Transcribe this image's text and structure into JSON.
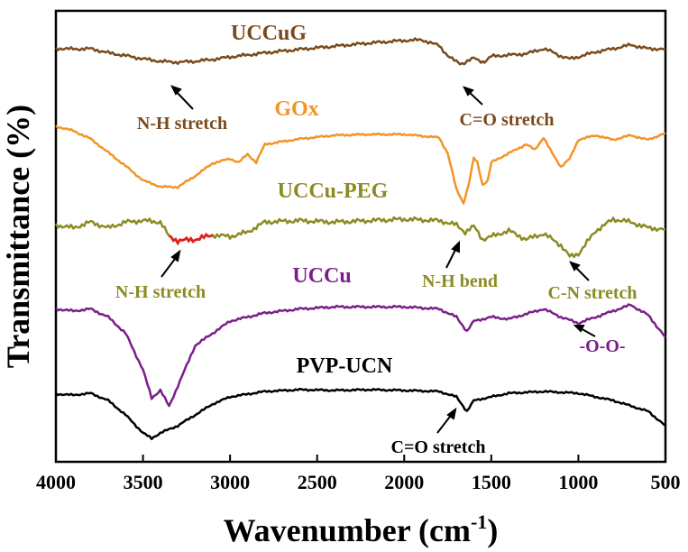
{
  "chart_data": {
    "type": "line",
    "title": "",
    "xlabel": "Wavenumber (cm",
    "xlabel_superscript": "-1",
    "xlabel_suffix": ")",
    "ylabel": "Transmittance (%)",
    "xlim": [
      4000,
      500
    ],
    "x_reversed": true,
    "yaxis_ticks_visible": false,
    "grid": false,
    "x_ticks": [
      4000,
      3500,
      3000,
      2500,
      2000,
      1500,
      1000,
      500
    ],
    "x_tick_labels": [
      "4000",
      "3500",
      "3000",
      "2500",
      "2000",
      "1500",
      "1000",
      "500"
    ],
    "series": [
      {
        "name": "UCCuG",
        "color": "#7a4a1c",
        "label_color": "#7a4a1c",
        "values": [
          [
            4000,
            0.39
          ],
          [
            3900,
            0.41
          ],
          [
            3800,
            0.4
          ],
          [
            3700,
            0.53
          ],
          [
            3600,
            0.62
          ],
          [
            3500,
            0.72
          ],
          [
            3400,
            0.8
          ],
          [
            3300,
            0.83
          ],
          [
            3200,
            0.8
          ],
          [
            3100,
            0.74
          ],
          [
            3000,
            0.66
          ],
          [
            2900,
            0.6
          ],
          [
            2800,
            0.53
          ],
          [
            2600,
            0.42
          ],
          [
            2400,
            0.32
          ],
          [
            2200,
            0.22
          ],
          [
            2000,
            0.14
          ],
          [
            1900,
            0.12
          ],
          [
            1800,
            0.3
          ],
          [
            1750,
            0.62
          ],
          [
            1700,
            0.82
          ],
          [
            1670,
            0.88
          ],
          [
            1650,
            0.82
          ],
          [
            1600,
            0.7
          ],
          [
            1560,
            0.8
          ],
          [
            1540,
            0.82
          ],
          [
            1500,
            0.64
          ],
          [
            1400,
            0.6
          ],
          [
            1300,
            0.56
          ],
          [
            1200,
            0.4
          ],
          [
            1150,
            0.5
          ],
          [
            1100,
            0.64
          ],
          [
            1050,
            0.72
          ],
          [
            1000,
            0.66
          ],
          [
            900,
            0.5
          ],
          [
            800,
            0.4
          ],
          [
            700,
            0.28
          ],
          [
            600,
            0.4
          ],
          [
            500,
            0.41
          ]
        ]
      },
      {
        "name": "GOx",
        "color": "#f39428",
        "label_color": "#f39428",
        "values": [
          [
            4000,
            0.0
          ],
          [
            3900,
            0.1
          ],
          [
            3800,
            0.28
          ],
          [
            3700,
            0.58
          ],
          [
            3600,
            0.88
          ],
          [
            3500,
            1.2
          ],
          [
            3400,
            1.34
          ],
          [
            3300,
            1.35
          ],
          [
            3200,
            1.1
          ],
          [
            3100,
            0.82
          ],
          [
            3000,
            0.72
          ],
          [
            2950,
            0.8
          ],
          [
            2900,
            0.62
          ],
          [
            2850,
            0.8
          ],
          [
            2800,
            0.4
          ],
          [
            2600,
            0.28
          ],
          [
            2400,
            0.2
          ],
          [
            2200,
            0.18
          ],
          [
            2000,
            0.18
          ],
          [
            1800,
            0.25
          ],
          [
            1750,
            0.6
          ],
          [
            1700,
            1.4
          ],
          [
            1660,
            1.7
          ],
          [
            1630,
            1.3
          ],
          [
            1600,
            0.7
          ],
          [
            1580,
            0.8
          ],
          [
            1550,
            1.3
          ],
          [
            1520,
            1.2
          ],
          [
            1500,
            0.8
          ],
          [
            1400,
            0.6
          ],
          [
            1300,
            0.4
          ],
          [
            1250,
            0.52
          ],
          [
            1200,
            0.25
          ],
          [
            1150,
            0.6
          ],
          [
            1100,
            0.9
          ],
          [
            1050,
            0.72
          ],
          [
            1000,
            0.3
          ],
          [
            900,
            0.2
          ],
          [
            800,
            0.3
          ],
          [
            700,
            0.2
          ],
          [
            600,
            0.3
          ],
          [
            500,
            0.15
          ]
        ]
      },
      {
        "name": "UCCu-PEG",
        "color": "#8b8b24",
        "label_color": "#8b8b24",
        "values": [
          [
            4000,
            0.2
          ],
          [
            3900,
            0.3
          ],
          [
            3800,
            0.1
          ],
          [
            3700,
            0.3
          ],
          [
            3600,
            0.1
          ],
          [
            3500,
            0.05
          ],
          [
            3400,
            0.1
          ],
          [
            3350,
            0.6
          ],
          [
            3300,
            0.75
          ],
          [
            3200,
            0.7
          ],
          [
            3100,
            0.55
          ],
          [
            3000,
            0.6
          ],
          [
            2900,
            0.45
          ],
          [
            2800,
            0.1
          ],
          [
            2600,
            0.05
          ],
          [
            2400,
            0.1
          ],
          [
            2200,
            0.05
          ],
          [
            2000,
            0.0
          ],
          [
            1800,
            0.05
          ],
          [
            1700,
            0.2
          ],
          [
            1650,
            0.45
          ],
          [
            1600,
            0.25
          ],
          [
            1550,
            0.7
          ],
          [
            1500,
            0.6
          ],
          [
            1400,
            0.4
          ],
          [
            1300,
            0.7
          ],
          [
            1200,
            0.5
          ],
          [
            1100,
            0.9
          ],
          [
            1050,
            1.3
          ],
          [
            1000,
            1.2
          ],
          [
            900,
            0.4
          ],
          [
            800,
            0.0
          ],
          [
            700,
            0.1
          ],
          [
            600,
            0.3
          ],
          [
            500,
            0.35
          ]
        ]
      },
      {
        "name": "UCCu",
        "color": "#7a1f8a",
        "label_color": "#7a1f8a",
        "values": [
          [
            4000,
            0.1
          ],
          [
            3900,
            0.15
          ],
          [
            3800,
            0.1
          ],
          [
            3700,
            0.3
          ],
          [
            3600,
            0.7
          ],
          [
            3500,
            1.6
          ],
          [
            3450,
            2.3
          ],
          [
            3400,
            2.1
          ],
          [
            3350,
            2.5
          ],
          [
            3300,
            2.0
          ],
          [
            3200,
            1.0
          ],
          [
            3100,
            0.7
          ],
          [
            3000,
            0.4
          ],
          [
            2800,
            0.2
          ],
          [
            2600,
            0.1
          ],
          [
            2400,
            0.05
          ],
          [
            2200,
            0.05
          ],
          [
            2000,
            0.05
          ],
          [
            1800,
            0.1
          ],
          [
            1700,
            0.3
          ],
          [
            1640,
            0.65
          ],
          [
            1600,
            0.4
          ],
          [
            1500,
            0.3
          ],
          [
            1400,
            0.35
          ],
          [
            1200,
            0.1
          ],
          [
            1100,
            0.3
          ],
          [
            1000,
            0.45
          ],
          [
            900,
            0.3
          ],
          [
            800,
            0.15
          ],
          [
            700,
            0.0
          ],
          [
            600,
            0.25
          ],
          [
            500,
            0.8
          ]
        ]
      },
      {
        "name": "PVP-UCN",
        "color": "#000000",
        "label_color": "#000000",
        "values": [
          [
            4000,
            0.12
          ],
          [
            3900,
            0.15
          ],
          [
            3800,
            0.1
          ],
          [
            3700,
            0.3
          ],
          [
            3600,
            0.7
          ],
          [
            3500,
            1.2
          ],
          [
            3450,
            1.35
          ],
          [
            3400,
            1.2
          ],
          [
            3300,
            1.0
          ],
          [
            3200,
            0.7
          ],
          [
            3100,
            0.4
          ],
          [
            3000,
            0.2
          ],
          [
            2800,
            0.05
          ],
          [
            2600,
            0.0
          ],
          [
            2400,
            0.02
          ],
          [
            2200,
            0.0
          ],
          [
            2000,
            0.02
          ],
          [
            1800,
            0.05
          ],
          [
            1700,
            0.2
          ],
          [
            1640,
            0.6
          ],
          [
            1600,
            0.3
          ],
          [
            1500,
            0.2
          ],
          [
            1400,
            0.1
          ],
          [
            1200,
            0.05
          ],
          [
            1000,
            0.1
          ],
          [
            800,
            0.3
          ],
          [
            600,
            0.6
          ],
          [
            500,
            1.0
          ]
        ]
      }
    ],
    "highlight_segment": {
      "series": "UCCu-PEG",
      "from": 3350,
      "to": 3100,
      "color": "#e02020"
    },
    "annotations": [
      {
        "text": "N-H stretch",
        "color": "#7a4a1c"
      },
      {
        "text": "C=O stretch",
        "color": "#7a4a1c"
      },
      {
        "text": "N-H stretch",
        "color": "#8b8b24"
      },
      {
        "text": "N-H bend",
        "color": "#8b8b24"
      },
      {
        "text": "C-N stretch",
        "color": "#8b8b24"
      },
      {
        "text": "-O-O-",
        "color": "#7a1f8a"
      },
      {
        "text": "C=O stretch",
        "color": "#000000"
      }
    ]
  }
}
